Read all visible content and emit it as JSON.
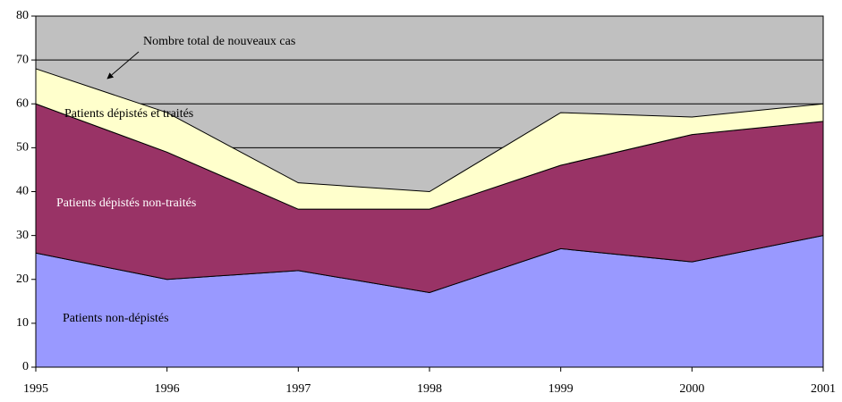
{
  "chart_data": {
    "type": "stacked_area",
    "categories": [
      "1995",
      "1996",
      "1997",
      "1998",
      "1999",
      "2000",
      "2001"
    ],
    "series": [
      {
        "name": "Patients non-dépistés",
        "color": "#9999ff",
        "label_color": "#000000",
        "values": [
          26,
          20,
          22,
          17,
          27,
          24,
          30
        ]
      },
      {
        "name": "Patients dépistés non-traités",
        "color": "#993366",
        "label_color": "#ffffff",
        "values": [
          34,
          29,
          14,
          19,
          19,
          29,
          26
        ]
      },
      {
        "name": "Patients dépistés et traités",
        "color": "#ffffcc",
        "label_color": "#000000",
        "values": [
          8,
          9,
          6,
          4,
          12,
          4,
          4
        ]
      }
    ],
    "annotation": "Nombre total de nouveaux cas",
    "plot_background": "#c0c0c0",
    "ylim": [
      0,
      80
    ],
    "yticks": [
      0,
      10,
      20,
      30,
      40,
      50,
      60,
      70,
      80
    ],
    "grid": true
  }
}
